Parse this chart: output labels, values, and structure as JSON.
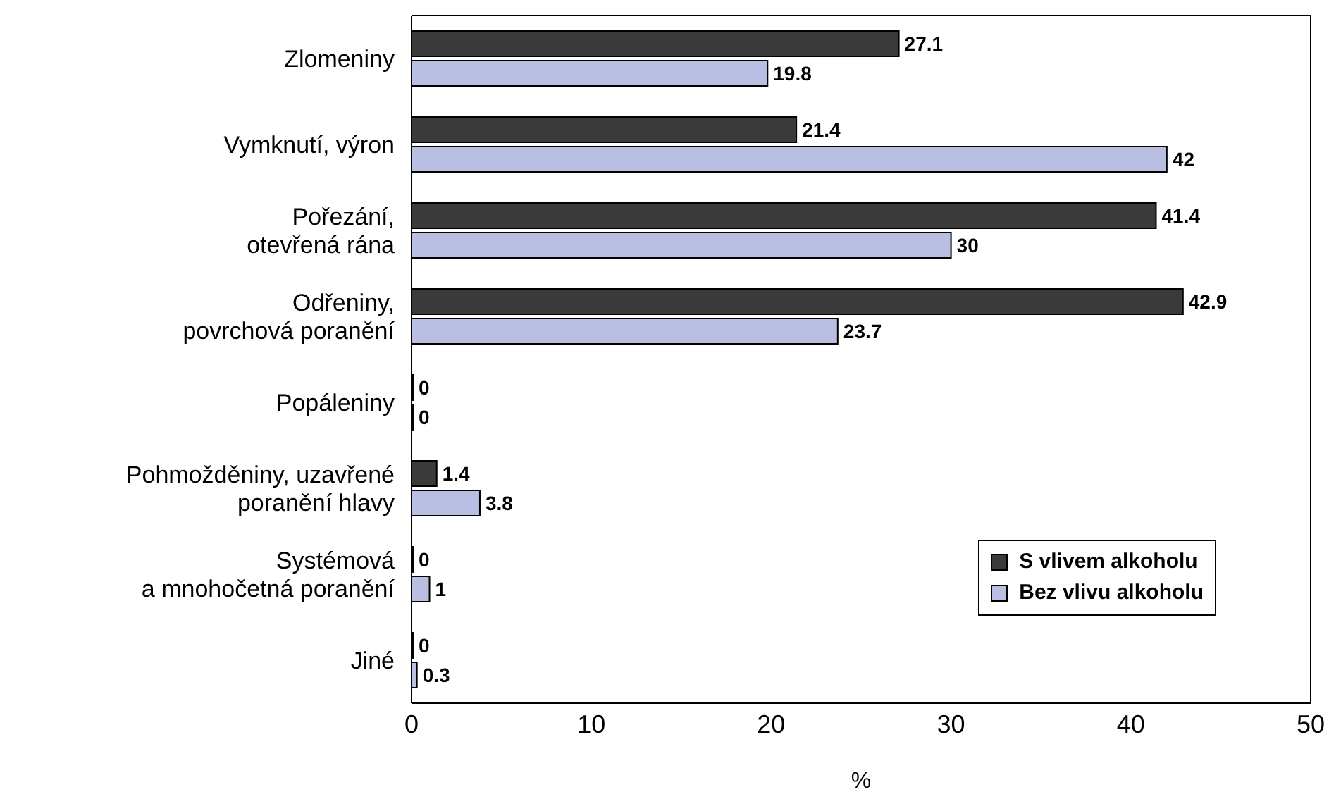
{
  "chart_data": {
    "type": "bar",
    "orientation": "horizontal",
    "categories": [
      "Zlomeniny",
      "Vymknutí, výron",
      "Pořezání,\notevřená rána",
      "Odřeniny,\npovrchová poranění",
      "Popáleniny",
      "Pohmožděniny, uzavřené\nporanění hlavy",
      "Systémová\na mnohočetná poranění",
      "Jiné"
    ],
    "series": [
      {
        "name": "S vlivem alkoholu",
        "color": "#3a3a3a",
        "values": [
          27.1,
          21.4,
          41.4,
          42.9,
          0,
          1.4,
          0,
          0
        ]
      },
      {
        "name": "Bez vlivu alkoholu",
        "color": "#b9bee3",
        "values": [
          19.8,
          42,
          30,
          23.7,
          0,
          3.8,
          1,
          0.3
        ]
      }
    ],
    "xlim": [
      0,
      50
    ],
    "xticks": [
      0,
      10,
      20,
      30,
      40,
      50
    ],
    "xlabel": "%",
    "data_labels": true,
    "legend": "bottom right",
    "grid": false
  }
}
